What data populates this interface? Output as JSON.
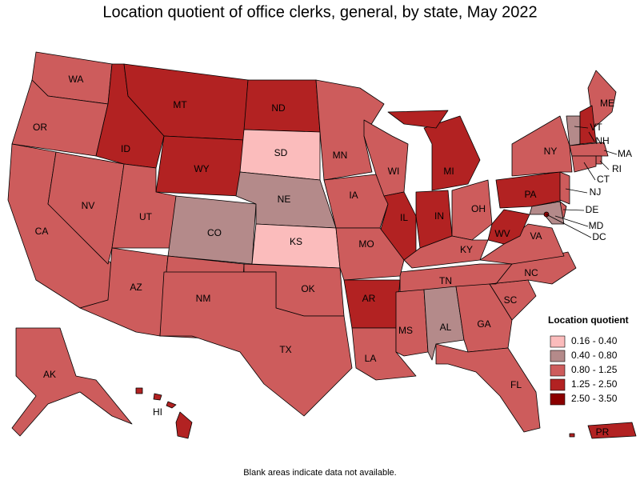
{
  "title": "Location quotient of office clerks, general, by state, May 2022",
  "states": [
    {
      "label": "WA",
      "color": "#cd5c5c"
    },
    {
      "label": "OR",
      "color": "#cd5c5c"
    },
    {
      "label": "CA",
      "color": "#cd5c5c"
    },
    {
      "label": "NV",
      "color": "#cd5c5c"
    },
    {
      "label": "ID",
      "color": "#b22222"
    },
    {
      "label": "MT",
      "color": "#b22222"
    },
    {
      "label": "WY",
      "color": "#b22222"
    },
    {
      "label": "UT",
      "color": "#cd5c5c"
    },
    {
      "label": "CO",
      "color": "#b48a8a"
    },
    {
      "label": "AZ",
      "color": "#cd5c5c"
    },
    {
      "label": "NM",
      "color": "#cd5c5c"
    },
    {
      "label": "ND",
      "color": "#b22222"
    },
    {
      "label": "SD",
      "color": "#fbbcbc"
    },
    {
      "label": "NE",
      "color": "#b48a8a"
    },
    {
      "label": "KS",
      "color": "#fbbcbc"
    },
    {
      "label": "OK",
      "color": "#cd5c5c"
    },
    {
      "label": "TX",
      "color": "#cd5c5c"
    },
    {
      "label": "MN",
      "color": "#cd5c5c"
    },
    {
      "label": "IA",
      "color": "#cd5c5c"
    },
    {
      "label": "WI",
      "color": "#cd5c5c"
    },
    {
      "label": "IL",
      "color": "#b22222"
    },
    {
      "label": "IN",
      "color": "#b22222"
    },
    {
      "label": "MI",
      "color": "#b22222"
    },
    {
      "label": "OH",
      "color": "#cd5c5c"
    },
    {
      "label": "KY",
      "color": "#cd5c5c"
    },
    {
      "label": "TN",
      "color": "#cd5c5c"
    },
    {
      "label": "MO",
      "color": "#cd5c5c"
    },
    {
      "label": "AR",
      "color": "#b22222"
    },
    {
      "label": "LA",
      "color": "#cd5c5c"
    },
    {
      "label": "MS",
      "color": "#cd5c5c"
    },
    {
      "label": "AL",
      "color": "#b48a8a"
    },
    {
      "label": "GA",
      "color": "#cd5c5c"
    },
    {
      "label": "FL",
      "color": "#cd5c5c"
    },
    {
      "label": "SC",
      "color": "#cd5c5c"
    },
    {
      "label": "NC",
      "color": "#cd5c5c"
    },
    {
      "label": "VA",
      "color": "#cd5c5c"
    },
    {
      "label": "WV",
      "color": "#b22222"
    },
    {
      "label": "PA",
      "color": "#b22222"
    },
    {
      "label": "NY",
      "color": "#cd5c5c"
    },
    {
      "label": "ME",
      "color": "#cd5c5c"
    },
    {
      "label": "VT",
      "color": "#b48a8a"
    },
    {
      "label": "NH",
      "color": "#b22222"
    },
    {
      "label": "MA",
      "color": "#cd5c5c"
    },
    {
      "label": "RI",
      "color": "#cd5c5c"
    },
    {
      "label": "CT",
      "color": "#cd5c5c"
    },
    {
      "label": "NJ",
      "color": "#cd5c5c"
    },
    {
      "label": "DE",
      "color": "#cd5c5c"
    },
    {
      "label": "MD",
      "color": "#b48a8a"
    },
    {
      "label": "DC",
      "color": "#8b0000"
    },
    {
      "label": "AK",
      "color": "#cd5c5c"
    },
    {
      "label": "HI",
      "color": "#b22222"
    },
    {
      "label": "PR",
      "color": "#b22222"
    }
  ],
  "legend": {
    "title": "Location quotient",
    "items": [
      {
        "label": "0.16 - 0.40",
        "color": "#fbbcbc"
      },
      {
        "label": "0.40 - 0.80",
        "color": "#b48a8a"
      },
      {
        "label": "0.80 - 1.25",
        "color": "#cd5c5c"
      },
      {
        "label": "1.25 - 2.50",
        "color": "#b22222"
      },
      {
        "label": "2.50 - 3.50",
        "color": "#8b0000"
      }
    ]
  },
  "footnote": "Blank areas indicate data not available."
}
